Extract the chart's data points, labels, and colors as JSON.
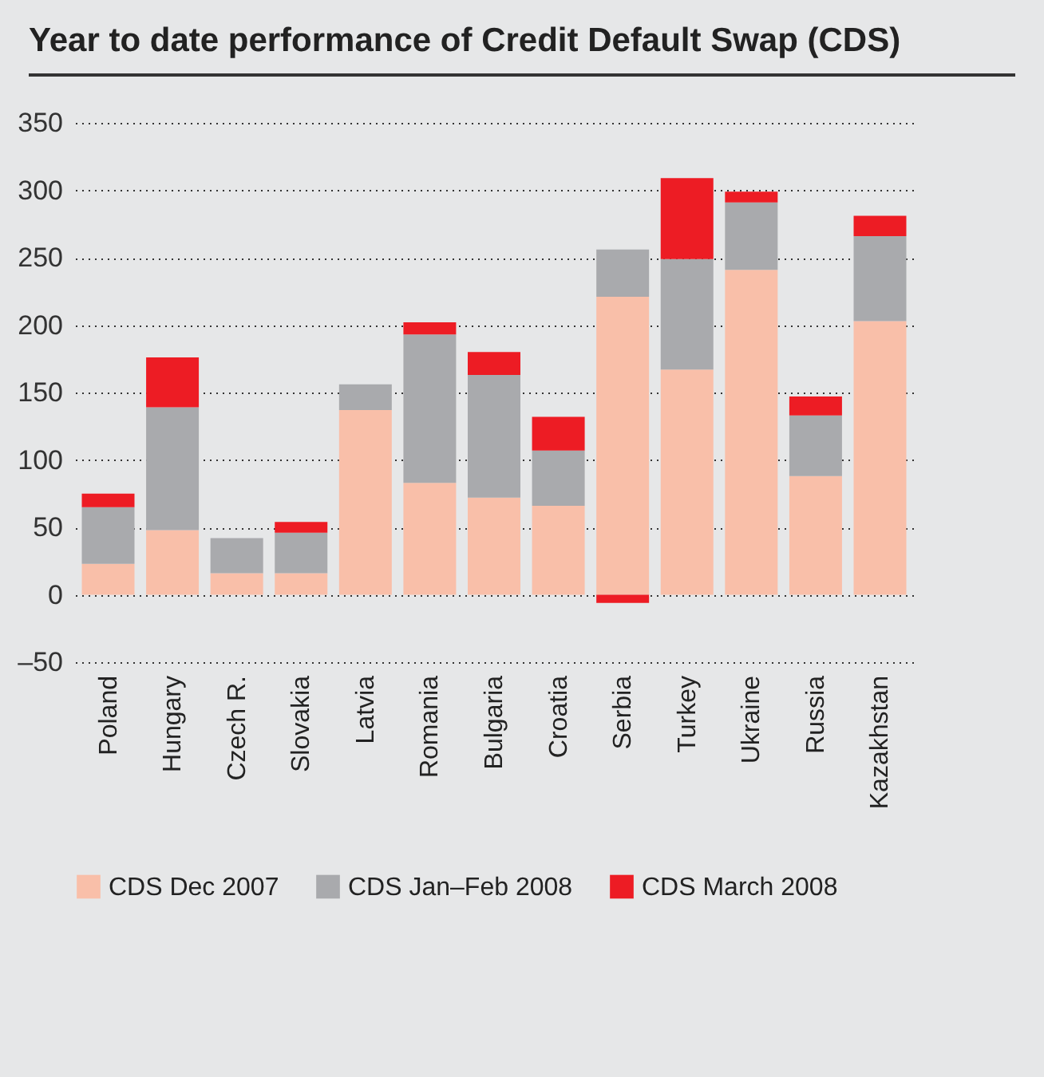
{
  "chart_data": {
    "type": "bar",
    "title": "Year to date performance of Credit Default Swap (CDS)",
    "categories": [
      "Poland",
      "Hungary",
      "Czech R.",
      "Slovakia",
      "Latvia",
      "Romania",
      "Bulgaria",
      "Croatia",
      "Serbia",
      "Turkey",
      "Ukraine",
      "Russia",
      "Kazakhstan"
    ],
    "series": [
      {
        "name": "CDS Dec 2007",
        "color": "#f9bfa9",
        "values": [
          23,
          48,
          16,
          16,
          137,
          83,
          72,
          66,
          221,
          167,
          241,
          88,
          203
        ]
      },
      {
        "name": "CDS Jan–Feb 2008",
        "color": "#a9aaad",
        "values": [
          42,
          91,
          26,
          30,
          19,
          110,
          91,
          41,
          35,
          82,
          50,
          45,
          63
        ]
      },
      {
        "name": "CDS March 2008",
        "color": "#ed1c24",
        "values": [
          10,
          37,
          0,
          8,
          0,
          9,
          17,
          25,
          -6,
          60,
          8,
          14,
          15
        ]
      }
    ],
    "stacked": true,
    "ylim": [
      -50,
      350
    ],
    "yticks": [
      {
        "value": -50,
        "label": "–50"
      },
      0,
      50,
      100,
      150,
      200,
      250,
      300,
      350
    ],
    "grid": "y",
    "legend": "bottom"
  }
}
